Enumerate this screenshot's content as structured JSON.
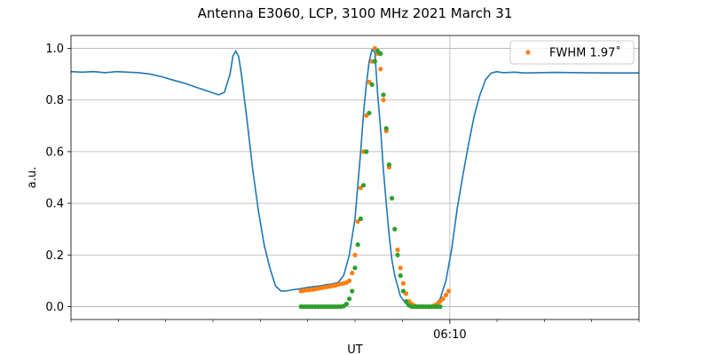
{
  "chart_data": {
    "type": "line",
    "title": "Antenna E3060, LCP, 3100 MHz 2021 March 31",
    "xlabel": "UT",
    "ylabel": "a.u.",
    "xlim": [
      0,
      100
    ],
    "ylim": [
      -0.05,
      1.05
    ],
    "xticks": [
      {
        "x": 66.7,
        "label": "06:10"
      }
    ],
    "yticks": [
      0.0,
      0.2,
      0.4,
      0.6,
      0.8,
      1.0
    ],
    "grid": true,
    "legend": {
      "placement": "top-right",
      "entries": [
        {
          "label": "FWHM 1.97˚",
          "series": "fit"
        }
      ]
    },
    "series": [
      {
        "id": "scan",
        "style": "line",
        "color": "#1f77b4",
        "x": [
          0,
          2,
          4,
          6,
          8,
          10,
          12,
          14,
          16,
          18,
          20,
          22,
          24,
          26,
          27,
          28,
          28.5,
          29,
          29.5,
          30,
          31,
          32,
          33,
          34,
          35,
          36,
          37,
          38,
          39,
          40,
          40.5,
          41,
          42,
          43,
          44,
          45,
          46,
          47,
          48,
          49,
          50,
          51,
          51.5,
          52,
          52.5,
          53,
          53.5,
          54,
          54.5,
          55,
          55.5,
          56,
          56.5,
          57,
          58,
          59,
          60,
          61,
          62,
          63,
          64,
          65,
          66,
          67,
          68,
          69,
          70,
          71,
          72,
          73,
          74,
          75,
          76,
          78,
          80,
          85,
          90,
          95,
          100
        ],
        "y": [
          0.91,
          0.908,
          0.91,
          0.906,
          0.91,
          0.908,
          0.906,
          0.9,
          0.89,
          0.877,
          0.865,
          0.85,
          0.835,
          0.82,
          0.83,
          0.9,
          0.97,
          0.99,
          0.97,
          0.9,
          0.72,
          0.53,
          0.37,
          0.24,
          0.15,
          0.08,
          0.06,
          0.061,
          0.065,
          0.068,
          0.07,
          0.072,
          0.075,
          0.078,
          0.081,
          0.085,
          0.088,
          0.093,
          0.12,
          0.2,
          0.34,
          0.6,
          0.75,
          0.86,
          0.95,
          0.995,
          0.985,
          0.82,
          0.69,
          0.53,
          0.4,
          0.28,
          0.18,
          0.12,
          0.04,
          0.01,
          0.002,
          0.0,
          0.0,
          0.0,
          0.005,
          0.03,
          0.1,
          0.22,
          0.38,
          0.51,
          0.63,
          0.74,
          0.82,
          0.88,
          0.905,
          0.91,
          0.906,
          0.908,
          0.905,
          0.907,
          0.906,
          0.905,
          0.905
        ]
      },
      {
        "id": "fit",
        "style": "points",
        "color": "#ff7f0e",
        "x": [
          40.5,
          41,
          41.5,
          42,
          42.5,
          43,
          43.5,
          44,
          44.5,
          45,
          45.5,
          46,
          46.5,
          47,
          47.5,
          48,
          48.5,
          49,
          49.5,
          50,
          50.5,
          51,
          51.5,
          52,
          52.5,
          53,
          53.5,
          54,
          54.5,
          55,
          55.5,
          56,
          56.5,
          57,
          57.5,
          58,
          58.5,
          59,
          59.5,
          60,
          60.5,
          61,
          61.5,
          62,
          62.5,
          63,
          63.5,
          64,
          64.5,
          65,
          65.5,
          66,
          66.5
        ],
        "y": [
          0.06,
          0.062,
          0.064,
          0.065,
          0.066,
          0.068,
          0.07,
          0.072,
          0.074,
          0.076,
          0.078,
          0.08,
          0.082,
          0.085,
          0.088,
          0.09,
          0.093,
          0.1,
          0.13,
          0.2,
          0.33,
          0.46,
          0.6,
          0.74,
          0.87,
          0.95,
          1.0,
          0.98,
          0.92,
          0.8,
          0.68,
          0.54,
          0.42,
          0.3,
          0.22,
          0.15,
          0.09,
          0.05,
          0.02,
          0.01,
          0.004,
          0.0,
          0.0,
          0.0,
          0.0,
          0.0,
          0.0,
          0.005,
          0.01,
          0.02,
          0.03,
          0.045,
          0.06
        ]
      },
      {
        "id": "data",
        "style": "points",
        "color": "#2ca02c",
        "x": [
          40.5,
          41,
          41.5,
          42,
          42.5,
          43,
          43.5,
          44,
          44.5,
          45,
          45.5,
          46,
          46.5,
          47,
          47.5,
          48,
          48.5,
          49,
          49.5,
          50,
          50.5,
          51,
          51.5,
          52,
          52.5,
          53,
          53.5,
          54,
          54.5,
          55,
          55.5,
          56,
          56.5,
          57,
          57.5,
          58,
          58.5,
          59,
          59.5,
          60,
          60.5,
          61,
          61.5,
          62,
          62.5,
          63,
          63.5,
          64,
          64.5,
          65
        ],
        "y": [
          0.0,
          0.0,
          0.0,
          0.0,
          0.0,
          0.0,
          0.0,
          0.0,
          0.0,
          0.0,
          0.0,
          0.0,
          0.0,
          0.0,
          0.0,
          0.002,
          0.01,
          0.03,
          0.06,
          0.15,
          0.24,
          0.34,
          0.47,
          0.6,
          0.75,
          0.86,
          0.95,
          0.99,
          0.98,
          0.82,
          0.69,
          0.55,
          0.42,
          0.3,
          0.2,
          0.12,
          0.06,
          0.02,
          0.005,
          0.0,
          0.0,
          0.0,
          0.0,
          0.0,
          0.0,
          0.0,
          0.0,
          0.0,
          0.0,
          0.0
        ]
      }
    ]
  }
}
